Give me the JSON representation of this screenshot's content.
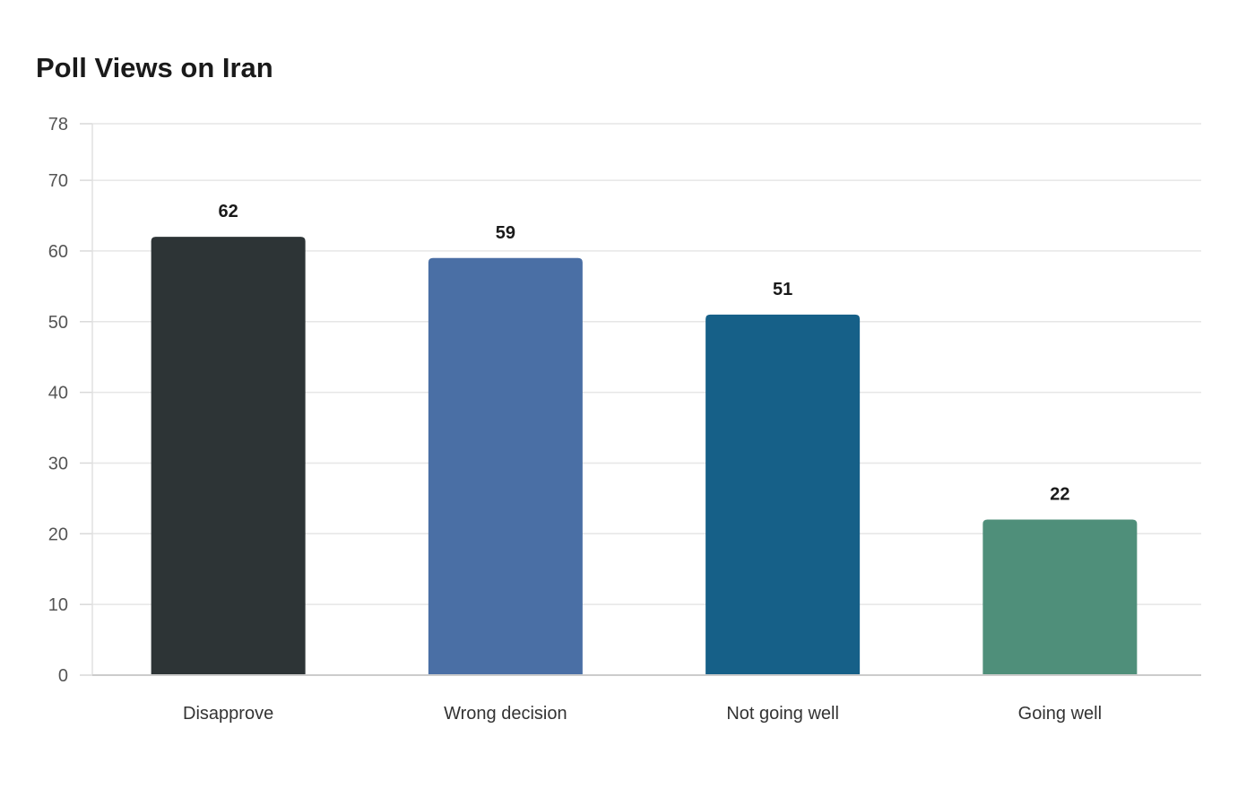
{
  "chart_data": {
    "type": "bar",
    "title": "Poll Views on Iran",
    "categories": [
      "Disapprove",
      "Wrong decision",
      "Not going well",
      "Going well"
    ],
    "values": [
      62,
      59,
      51,
      22
    ],
    "colors": [
      "#2d3436",
      "#4a6fa5",
      "#166088",
      "#4f8f7a"
    ],
    "xlabel": "",
    "ylabel": "",
    "ylim": [
      0,
      78
    ],
    "yticks": [
      0,
      10,
      20,
      30,
      40,
      50,
      60,
      70,
      78
    ],
    "grid": true,
    "legend": "none",
    "data_labels": true
  }
}
